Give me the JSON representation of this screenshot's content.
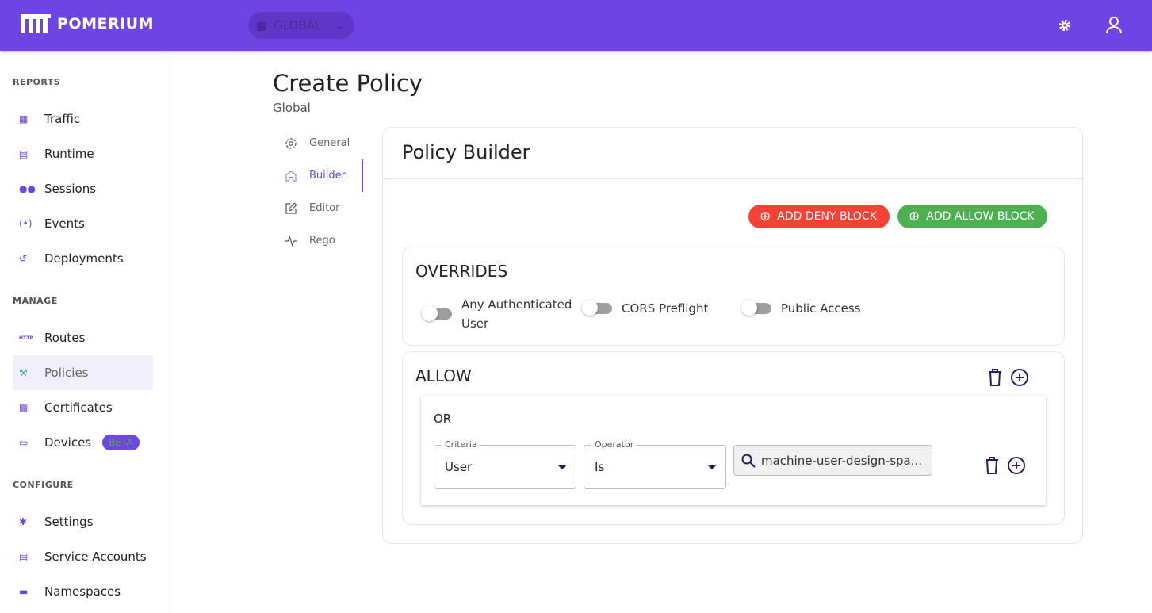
{
  "header": {
    "brand": "POMERIUM",
    "namespace": "GLOBAL",
    "colors": {
      "primary": "#6f44e4"
    }
  },
  "sidebar": {
    "sections": [
      {
        "title": "REPORTS",
        "items": [
          {
            "label": "Traffic",
            "icon": "bar-chart-icon"
          },
          {
            "label": "Runtime",
            "icon": "server-icon"
          },
          {
            "label": "Sessions",
            "icon": "people-icon"
          },
          {
            "label": "Events",
            "icon": "broadcast-icon"
          },
          {
            "label": "Deployments",
            "icon": "history-icon"
          }
        ]
      },
      {
        "title": "MANAGE",
        "items": [
          {
            "label": "Routes",
            "icon": "http-icon"
          },
          {
            "label": "Policies",
            "icon": "gavel-icon",
            "active": true
          },
          {
            "label": "Certificates",
            "icon": "lock-icon"
          },
          {
            "label": "Devices",
            "icon": "devices-icon",
            "badge": "BETA"
          }
        ]
      },
      {
        "title": "CONFIGURE",
        "items": [
          {
            "label": "Settings",
            "icon": "gear-icon"
          },
          {
            "label": "Service Accounts",
            "icon": "server-icon"
          },
          {
            "label": "Namespaces",
            "icon": "folder-icon"
          }
        ]
      }
    ]
  },
  "page": {
    "title": "Create Policy",
    "subtitle": "Global"
  },
  "tabs": [
    {
      "label": "General"
    },
    {
      "label": "Builder",
      "active": true
    },
    {
      "label": "Editor"
    },
    {
      "label": "Rego"
    }
  ],
  "builder": {
    "title": "Policy Builder",
    "add_deny": "ADD DENY BLOCK",
    "add_allow": "ADD ALLOW BLOCK",
    "deny_color": "#f44336",
    "allow_color": "#4caf50",
    "overrides": {
      "title": "OVERRIDES",
      "toggles": [
        {
          "label": "Any Authenticated User",
          "on": false
        },
        {
          "label": "CORS Preflight",
          "on": false
        },
        {
          "label": "Public Access",
          "on": false
        }
      ]
    },
    "allow": {
      "title": "ALLOW",
      "or": {
        "title": "OR",
        "criteria_label": "Criteria",
        "criteria": "User",
        "operator_label": "Operator",
        "operator": "Is",
        "value": "machine-user-design-spa..."
      }
    }
  }
}
